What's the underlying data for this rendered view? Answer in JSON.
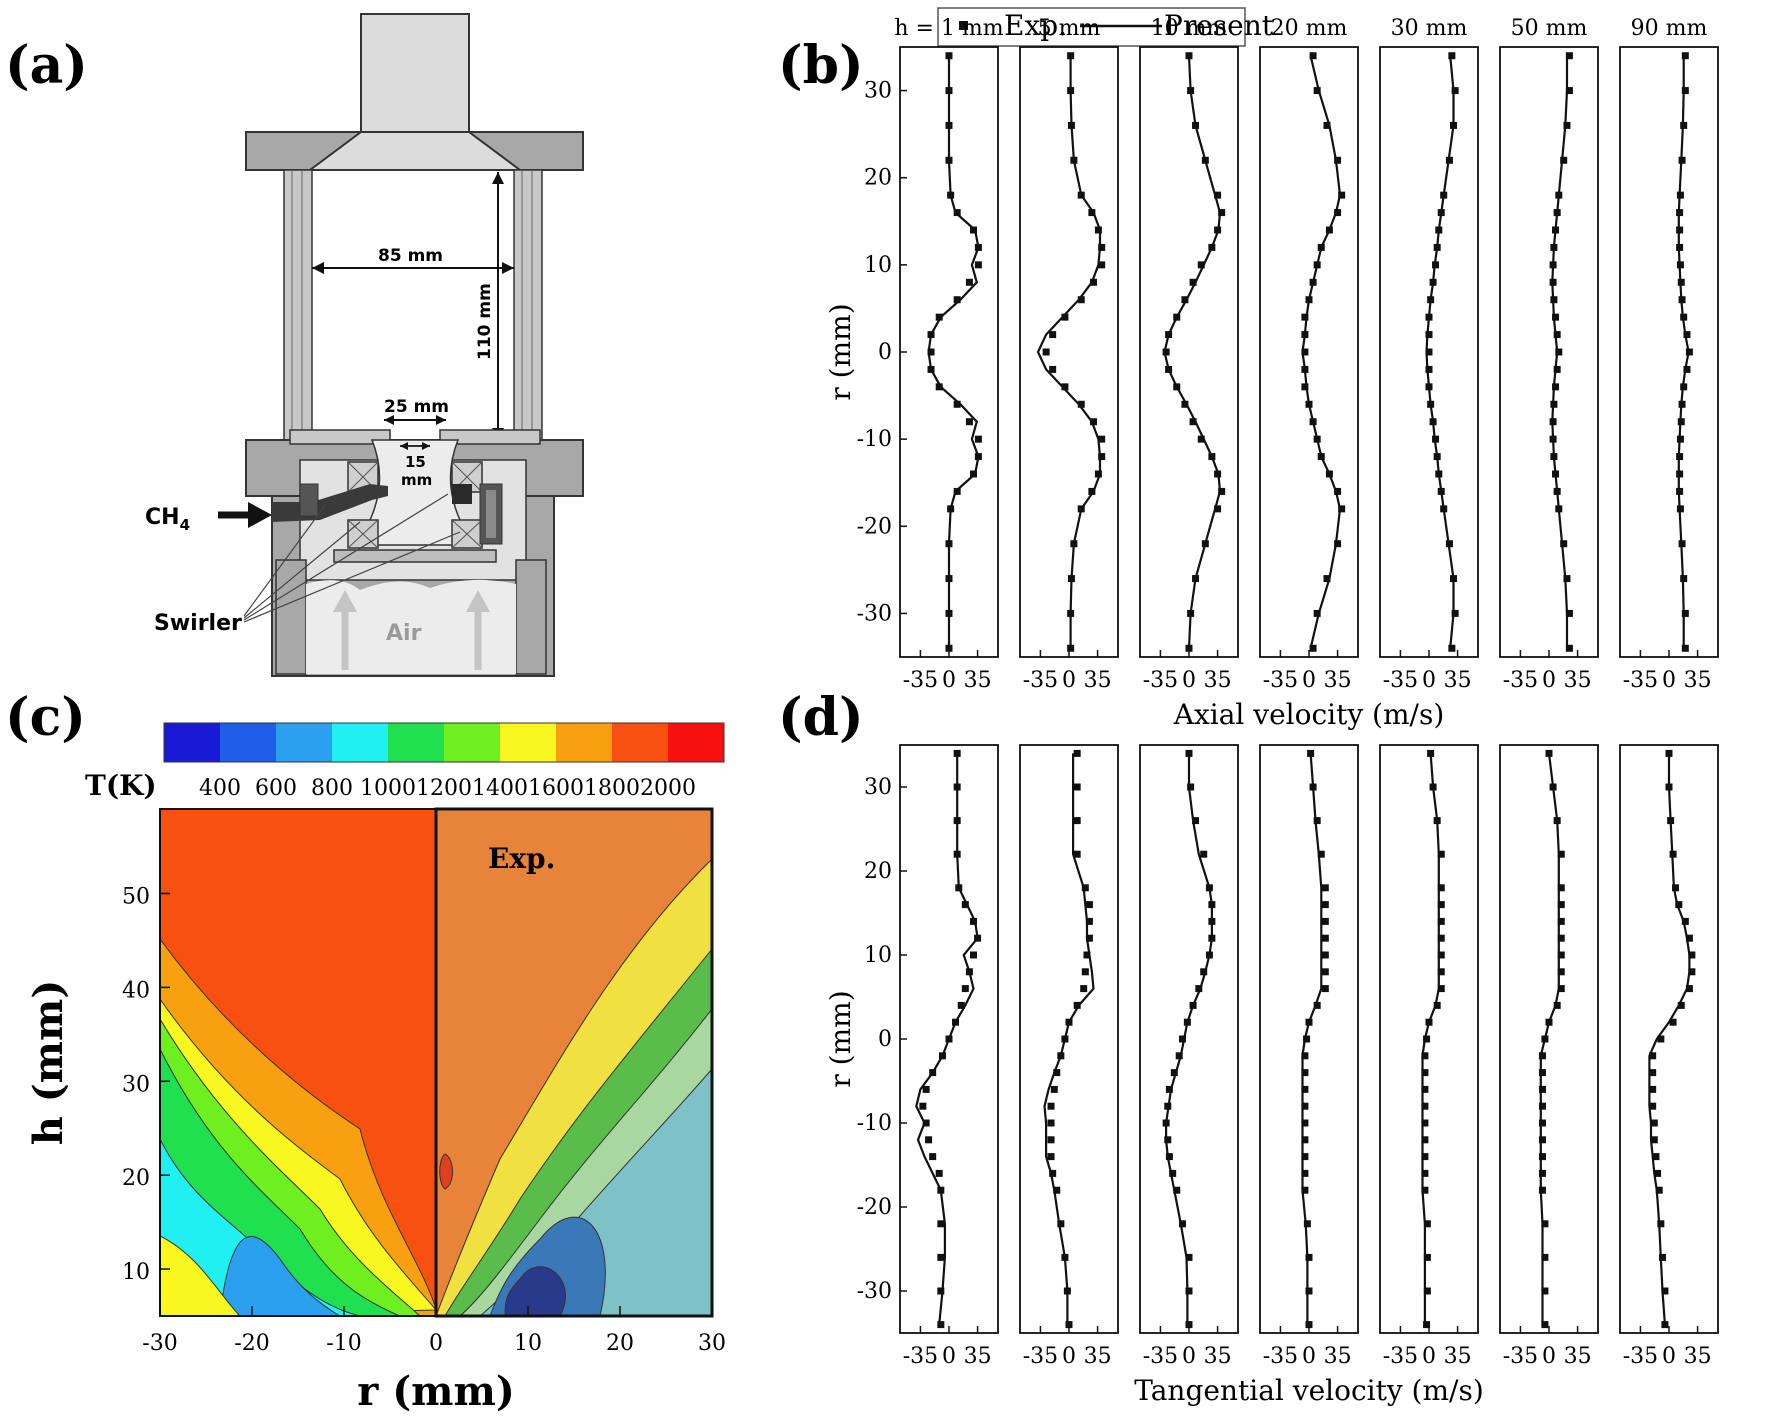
{
  "panels": {
    "a": "(a)",
    "b": "(b)",
    "c": "(c)",
    "d": "(d)"
  },
  "schematic": {
    "dim_85": "85 mm",
    "dim_110": "110 mm",
    "dim_25": "25 mm",
    "dim_15_num": "15",
    "dim_15_unit": "mm",
    "ch4_main": "CH",
    "ch4_sub": "4",
    "swirler": "Swirler",
    "air": "Air"
  },
  "legend": {
    "exp": "Exp.",
    "present": "Present"
  },
  "chart_data": [
    {
      "type": "line",
      "panel": "(b)",
      "xlabel": "Axial velocity (m/s)",
      "ylabel": "r (mm)",
      "xticks": [
        "-35",
        "0",
        "35"
      ],
      "yticks": [
        "30",
        "20",
        "10",
        "0",
        "-10",
        "-20",
        "-30"
      ],
      "ylim": [
        -35,
        35
      ],
      "subplot_titles": [
        "h = 1 mm",
        "5 mm",
        "10 mm",
        "20 mm",
        "30 mm",
        "50 mm",
        "90 mm"
      ],
      "r": [
        -34,
        -30,
        -26,
        -22,
        -18,
        -16,
        -14,
        -12,
        -10,
        -8,
        -6,
        -4,
        -2,
        0,
        2,
        4,
        6,
        8,
        10,
        12,
        14,
        16,
        18,
        22,
        26,
        30,
        34
      ],
      "series": [
        {
          "name": "Exp.",
          "subplot": "h = 1 mm",
          "values": [
            0,
            0,
            0,
            0,
            2,
            10,
            30,
            36,
            36,
            25,
            10,
            -12,
            -22,
            -22,
            -22,
            -12,
            10,
            25,
            36,
            36,
            30,
            10,
            2,
            0,
            0,
            0,
            0
          ]
        },
        {
          "name": "Present",
          "subplot": "h = 1 mm",
          "values": [
            0,
            0,
            0,
            0,
            2,
            8,
            32,
            36,
            28,
            34,
            14,
            -10,
            -22,
            -25,
            -22,
            -10,
            14,
            34,
            28,
            36,
            32,
            8,
            2,
            0,
            0,
            0,
            0
          ]
        },
        {
          "name": "Exp.",
          "subplot": "5 mm",
          "values": [
            2,
            2,
            3,
            6,
            15,
            28,
            36,
            40,
            40,
            30,
            15,
            -5,
            -20,
            -28,
            -20,
            -5,
            15,
            30,
            40,
            40,
            36,
            28,
            15,
            6,
            3,
            2,
            2
          ]
        },
        {
          "name": "Present",
          "subplot": "5 mm",
          "values": [
            2,
            2,
            3,
            6,
            15,
            30,
            38,
            38,
            36,
            28,
            12,
            -8,
            -28,
            -38,
            -28,
            -8,
            12,
            28,
            36,
            38,
            38,
            30,
            15,
            6,
            3,
            2,
            2
          ]
        },
        {
          "name": "Exp.",
          "subplot": "10 mm",
          "values": [
            0,
            2,
            8,
            20,
            35,
            40,
            35,
            28,
            15,
            5,
            -5,
            -15,
            -25,
            -28,
            -25,
            -15,
            -5,
            5,
            15,
            28,
            35,
            40,
            35,
            20,
            8,
            2,
            0
          ]
        },
        {
          "name": "Present",
          "subplot": "10 mm",
          "values": [
            0,
            2,
            8,
            20,
            32,
            38,
            36,
            28,
            18,
            8,
            -3,
            -15,
            -25,
            -30,
            -25,
            -15,
            -3,
            8,
            18,
            28,
            36,
            38,
            32,
            20,
            8,
            2,
            0
          ]
        },
        {
          "name": "Exp.",
          "subplot": "20 mm",
          "values": [
            5,
            10,
            22,
            35,
            40,
            35,
            25,
            15,
            10,
            5,
            0,
            -5,
            -5,
            -5,
            -5,
            -5,
            0,
            5,
            10,
            15,
            25,
            35,
            40,
            35,
            22,
            10,
            5
          ]
        },
        {
          "name": "Present",
          "subplot": "20 mm",
          "values": [
            2,
            12,
            25,
            33,
            38,
            33,
            25,
            15,
            10,
            5,
            0,
            -3,
            -5,
            -8,
            -5,
            -3,
            0,
            5,
            10,
            15,
            25,
            33,
            38,
            33,
            25,
            12,
            2
          ]
        },
        {
          "name": "Exp.",
          "subplot": "30 mm",
          "values": [
            28,
            32,
            30,
            25,
            18,
            15,
            12,
            10,
            8,
            5,
            2,
            0,
            0,
            0,
            0,
            0,
            2,
            5,
            8,
            10,
            12,
            15,
            18,
            25,
            30,
            32,
            28
          ]
        },
        {
          "name": "Present",
          "subplot": "30 mm",
          "values": [
            26,
            30,
            30,
            24,
            18,
            15,
            12,
            10,
            7,
            5,
            2,
            0,
            -2,
            -3,
            -2,
            0,
            2,
            5,
            7,
            10,
            12,
            15,
            18,
            24,
            30,
            30,
            26
          ]
        },
        {
          "name": "Exp.",
          "subplot": "50 mm",
          "values": [
            25,
            25,
            22,
            18,
            12,
            10,
            8,
            6,
            5,
            5,
            6,
            8,
            10,
            12,
            10,
            8,
            6,
            5,
            5,
            6,
            8,
            10,
            12,
            18,
            22,
            25,
            25
          ]
        },
        {
          "name": "Present",
          "subplot": "50 mm",
          "values": [
            22,
            22,
            20,
            16,
            12,
            10,
            8,
            6,
            5,
            4,
            5,
            6,
            8,
            10,
            8,
            6,
            5,
            4,
            5,
            6,
            8,
            10,
            12,
            16,
            20,
            22,
            22
          ]
        },
        {
          "name": "Exp.",
          "subplot": "90 mm",
          "values": [
            20,
            20,
            18,
            16,
            14,
            13,
            13,
            13,
            14,
            15,
            16,
            18,
            22,
            25,
            22,
            18,
            16,
            15,
            14,
            13,
            13,
            13,
            14,
            16,
            18,
            20,
            20
          ]
        },
        {
          "name": "Present",
          "subplot": "90 mm",
          "values": [
            18,
            18,
            17,
            15,
            13,
            12,
            12,
            12,
            13,
            14,
            15,
            17,
            20,
            24,
            20,
            17,
            15,
            14,
            13,
            12,
            12,
            12,
            13,
            15,
            17,
            18,
            18
          ]
        }
      ]
    },
    {
      "type": "heatmap",
      "panel": "(c)",
      "colorbar_label": "T(K)",
      "colorbar_ticks": [
        "400",
        "600",
        "800",
        "1000",
        "1200",
        "1400",
        "1600",
        "1800",
        "2000"
      ],
      "colorbar_colors": [
        "#1a1ad6",
        "#1e5ee8",
        "#2aa0ee",
        "#20f0f2",
        "#20e050",
        "#6ef020",
        "#f8f820",
        "#f8a010",
        "#f85010",
        "#f81010"
      ],
      "xlabel": "r (mm)",
      "ylabel": "h (mm)",
      "xticks": [
        "-30",
        "-20",
        "-10",
        "0",
        "10",
        "20",
        "30"
      ],
      "yticks": [
        "10",
        "20",
        "30",
        "40",
        "50"
      ],
      "xlim": [
        -30,
        30
      ],
      "ylim": [
        5,
        59
      ],
      "annotation": "Exp."
    },
    {
      "type": "line",
      "panel": "(d)",
      "xlabel": "Tangential velocity (m/s)",
      "ylabel": "r (mm)",
      "xticks": [
        "-35",
        "0",
        "35"
      ],
      "yticks": [
        "30",
        "20",
        "10",
        "0",
        "-10",
        "-20",
        "-30"
      ],
      "ylim": [
        -35,
        35
      ],
      "subplot_titles": [
        "h = 1 mm",
        "5 mm",
        "10 mm",
        "20 mm",
        "30 mm",
        "50 mm",
        "90 mm"
      ],
      "r": [
        -34,
        -30,
        -26,
        -22,
        -18,
        -16,
        -14,
        -12,
        -10,
        -8,
        -6,
        -4,
        -2,
        0,
        2,
        4,
        6,
        8,
        10,
        12,
        14,
        16,
        18,
        22,
        26,
        30,
        34
      ],
      "series": [
        {
          "name": "Exp.",
          "subplot": "h = 1 mm",
          "values": [
            -10,
            -10,
            -10,
            -10,
            -10,
            -12,
            -20,
            -25,
            -28,
            -32,
            -28,
            -20,
            -8,
            0,
            8,
            15,
            20,
            25,
            30,
            35,
            30,
            20,
            12,
            10,
            10,
            10,
            10
          ]
        },
        {
          "name": "Present",
          "subplot": "h = 1 mm",
          "values": [
            -12,
            -8,
            -5,
            -5,
            -10,
            -20,
            -30,
            -38,
            -30,
            -40,
            -35,
            -20,
            -8,
            0,
            8,
            20,
            30,
            25,
            18,
            35,
            32,
            22,
            12,
            10,
            10,
            10,
            10
          ]
        },
        {
          "name": "Exp.",
          "subplot": "5 mm",
          "values": [
            0,
            -2,
            -5,
            -10,
            -15,
            -20,
            -22,
            -22,
            -22,
            -22,
            -18,
            -15,
            -10,
            -5,
            0,
            10,
            18,
            20,
            22,
            25,
            25,
            25,
            20,
            10,
            10,
            10,
            10
          ]
        },
        {
          "name": "Present",
          "subplot": "5 mm",
          "values": [
            -2,
            -2,
            -5,
            -12,
            -18,
            -22,
            -28,
            -28,
            -28,
            -30,
            -25,
            -18,
            -10,
            -5,
            0,
            12,
            30,
            28,
            25,
            22,
            22,
            20,
            18,
            5,
            5,
            5,
            5
          ]
        },
        {
          "name": "Exp.",
          "subplot": "10 mm",
          "values": [
            0,
            0,
            0,
            -8,
            -15,
            -20,
            -24,
            -26,
            -28,
            -26,
            -24,
            -18,
            -12,
            -8,
            -2,
            5,
            12,
            18,
            25,
            28,
            28,
            28,
            25,
            18,
            8,
            2,
            0
          ]
        },
        {
          "name": "Present",
          "subplot": "10 mm",
          "values": [
            -2,
            -2,
            -3,
            -10,
            -18,
            -22,
            -26,
            -28,
            -28,
            -25,
            -22,
            -16,
            -10,
            -6,
            -2,
            5,
            14,
            20,
            25,
            28,
            28,
            28,
            25,
            12,
            5,
            0,
            0
          ]
        },
        {
          "name": "Exp.",
          "subplot": "20 mm",
          "values": [
            0,
            0,
            0,
            -2,
            -5,
            -5,
            -5,
            -5,
            -5,
            -5,
            -5,
            -5,
            -5,
            -3,
            0,
            10,
            20,
            20,
            20,
            20,
            20,
            20,
            20,
            15,
            10,
            5,
            2
          ]
        },
        {
          "name": "Present",
          "subplot": "20 mm",
          "values": [
            -2,
            -2,
            -2,
            -4,
            -8,
            -8,
            -8,
            -8,
            -8,
            -8,
            -8,
            -8,
            -8,
            -5,
            0,
            8,
            15,
            15,
            15,
            15,
            15,
            15,
            15,
            12,
            8,
            5,
            2
          ]
        },
        {
          "name": "Exp.",
          "subplot": "30 mm",
          "values": [
            -3,
            -2,
            -2,
            -2,
            -5,
            -5,
            -5,
            -5,
            -5,
            -5,
            -5,
            -5,
            -5,
            -3,
            0,
            10,
            15,
            15,
            15,
            15,
            15,
            15,
            15,
            15,
            10,
            5,
            2
          ]
        },
        {
          "name": "Present",
          "subplot": "30 mm",
          "values": [
            -5,
            -5,
            -5,
            -5,
            -8,
            -8,
            -8,
            -8,
            -8,
            -8,
            -8,
            -8,
            -8,
            -5,
            0,
            8,
            12,
            12,
            12,
            12,
            12,
            12,
            12,
            12,
            10,
            5,
            2
          ]
        },
        {
          "name": "Exp.",
          "subplot": "50 mm",
          "values": [
            -5,
            -5,
            -5,
            -5,
            -8,
            -8,
            -8,
            -8,
            -8,
            -8,
            -8,
            -8,
            -8,
            -5,
            0,
            10,
            15,
            15,
            15,
            15,
            15,
            15,
            15,
            15,
            10,
            5,
            0
          ]
        },
        {
          "name": "Present",
          "subplot": "50 mm",
          "values": [
            -8,
            -8,
            -8,
            -8,
            -10,
            -10,
            -10,
            -10,
            -10,
            -10,
            -10,
            -10,
            -10,
            -5,
            0,
            8,
            12,
            12,
            12,
            12,
            12,
            12,
            12,
            12,
            10,
            5,
            0
          ]
        },
        {
          "name": "Exp.",
          "subplot": "90 mm",
          "values": [
            -5,
            -5,
            -8,
            -10,
            -12,
            -14,
            -16,
            -18,
            -18,
            -20,
            -20,
            -20,
            -20,
            -10,
            5,
            15,
            25,
            28,
            28,
            25,
            20,
            12,
            8,
            5,
            2,
            0,
            0
          ]
        },
        {
          "name": "Present",
          "subplot": "90 mm",
          "values": [
            -5,
            -8,
            -10,
            -12,
            -15,
            -18,
            -20,
            -22,
            -22,
            -24,
            -24,
            -24,
            -24,
            -15,
            0,
            12,
            22,
            25,
            25,
            22,
            18,
            10,
            6,
            4,
            2,
            0,
            0
          ]
        }
      ]
    }
  ]
}
